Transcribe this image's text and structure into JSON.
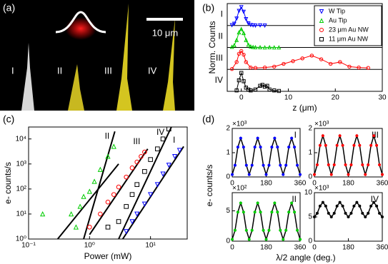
{
  "panel_labels": [
    "(a)",
    "(b)",
    "(c)",
    "(d)"
  ],
  "micrograph": {
    "tip_labels": [
      "I",
      "II",
      "III",
      "IV"
    ],
    "scale_bar": "10 μm"
  },
  "panel_d": {
    "x_label": "λ/2 angle (deg.)",
    "y_label": "e- counts/s"
  },
  "chart_data": [
    {
      "type": "stacked_line",
      "x_label": "z (μm)",
      "y_label": "Norm. Counts",
      "xlim": [
        -3,
        30
      ],
      "xticks": [
        0,
        10,
        20,
        30
      ],
      "legend": "upper right",
      "series": [
        {
          "name": "W Tip",
          "row_label": "I",
          "color": "#0000ff",
          "marker": "triangle-down",
          "x": [
            -2,
            -1.5,
            -1,
            -0.5,
            0,
            0.5,
            1,
            1.5,
            2,
            2.5,
            3,
            4,
            5
          ],
          "values": [
            0.02,
            0.1,
            0.38,
            0.8,
            1,
            0.75,
            0.35,
            0.12,
            0.03,
            0.01,
            0,
            0.01,
            0
          ]
        },
        {
          "name": "Au Tip",
          "row_label": "II",
          "color": "#00cc00",
          "marker": "triangle-up",
          "x": [
            -2,
            -1.5,
            -1,
            -0.5,
            0,
            0.5,
            1,
            1.5,
            2,
            2.5,
            3,
            4,
            5,
            6,
            7,
            8
          ],
          "values": [
            0.03,
            0.12,
            0.4,
            0.82,
            1,
            0.78,
            0.4,
            0.15,
            0.05,
            0.02,
            0.01,
            0.01,
            0,
            0.01,
            0,
            0
          ]
        },
        {
          "name": "23 μm Au NW",
          "row_label": "III",
          "color": "#ff0000",
          "marker": "circle",
          "x": [
            -2,
            -1,
            -0.5,
            0,
            0.5,
            1,
            2,
            3,
            5,
            7,
            9,
            11,
            13,
            15,
            17,
            19,
            21,
            23,
            25,
            27
          ],
          "values": [
            0.02,
            0.4,
            0.85,
            1,
            0.8,
            0.4,
            0.1,
            0.08,
            0.1,
            0.15,
            0.3,
            0.45,
            0.6,
            0.75,
            0.55,
            0.3,
            0.4,
            0.15,
            0.1,
            0.08
          ]
        },
        {
          "name": "11 μm Au NW",
          "row_label": "IV",
          "color": "#000000",
          "marker": "square",
          "x": [
            -1,
            -0.5,
            0,
            0.5,
            1,
            1.5,
            2,
            3,
            4,
            4.5,
            5,
            5.5,
            6,
            7,
            8
          ],
          "values": [
            0.05,
            0.6,
            1,
            0.55,
            0.2,
            0.1,
            0.05,
            0.1,
            0.3,
            0.35,
            0.25,
            0.3,
            0.1,
            0.05,
            0.02
          ]
        }
      ]
    },
    {
      "type": "scatter",
      "x_label": "Power (mW)",
      "y_label": "e- counts/s",
      "log_x": true,
      "log_y": true,
      "xlim": [
        0.1,
        40
      ],
      "ylim": [
        1,
        30000
      ],
      "xticks": [
        {
          "value": 0.1,
          "label": "10⁻¹"
        },
        {
          "value": 1,
          "label": "10⁰"
        },
        {
          "value": 10,
          "label": "10¹"
        }
      ],
      "yticks": [
        {
          "value": 1,
          "label": "10⁰"
        },
        {
          "value": 10,
          "label": "10¹"
        },
        {
          "value": 100,
          "label": "10²"
        },
        {
          "value": 1000,
          "label": "10³"
        },
        {
          "value": 10000,
          "label": "10⁴"
        }
      ],
      "series": [
        {
          "label": "II",
          "color": "#00cc00",
          "marker": "triangle-up",
          "x": [
            0.17,
            0.5,
            0.6,
            0.7,
            0.8,
            1,
            1.2,
            1.5,
            2,
            2.5
          ],
          "values": [
            10,
            10,
            3,
            20,
            50,
            80,
            200,
            600,
            2000,
            5000
          ]
        },
        {
          "label": "III",
          "color": "#ff0000",
          "marker": "circle",
          "x": [
            1,
            1.5,
            2,
            2.5,
            3,
            4,
            5,
            6,
            7,
            8
          ],
          "values": [
            3,
            10,
            30,
            60,
            120,
            300,
            700,
            1200,
            2000,
            3000
          ]
        },
        {
          "label": "IV",
          "color": "#000000",
          "marker": "square",
          "x": [
            2,
            3,
            4,
            5,
            6,
            8,
            10,
            13,
            16,
            20
          ],
          "values": [
            3,
            5,
            20,
            60,
            150,
            500,
            1500,
            4000,
            10000,
            25000
          ]
        },
        {
          "label": "I",
          "color": "#0000ff",
          "marker": "triangle-down",
          "x": [
            4,
            5,
            6,
            8,
            10,
            13,
            16,
            20,
            25,
            30
          ],
          "values": [
            2,
            5,
            10,
            25,
            60,
            150,
            400,
            900,
            2000,
            3500
          ]
        }
      ],
      "fits": [
        {
          "x": [
            0.8,
            2.6
          ],
          "values": [
            1,
            20000
          ]
        },
        {
          "x": [
            0.3,
            3
          ],
          "values": [
            1,
            1000
          ]
        },
        {
          "x": [
            1,
            9
          ],
          "values": [
            1.5,
            4000
          ]
        },
        {
          "x": [
            3,
            22
          ],
          "values": [
            1,
            30000
          ]
        },
        {
          "x": [
            3.5,
            35
          ],
          "values": [
            1,
            5000
          ]
        }
      ]
    },
    {
      "type": "line",
      "subplot_label": "I",
      "multiplier": "×10³",
      "xlim": [
        0,
        360
      ],
      "xticks": [
        0,
        180,
        360
      ],
      "ylim": [
        0,
        2
      ],
      "yticks": [
        0,
        1,
        2
      ],
      "x": [
        0,
        15,
        30,
        45,
        60,
        75,
        90,
        105,
        120,
        135,
        150,
        165,
        180,
        195,
        210,
        225,
        240,
        255,
        270,
        285,
        300,
        315,
        330,
        345,
        360
      ],
      "series": [
        {
          "color": "#0000ff",
          "values": [
            0.1,
            0.48,
            1.23,
            1.6,
            1.23,
            0.48,
            0.1,
            0.48,
            1.23,
            1.6,
            1.23,
            0.48,
            0.1,
            0.48,
            1.23,
            1.6,
            1.23,
            0.48,
            0.1,
            0.48,
            1.23,
            1.6,
            1.23,
            0.48,
            0.1
          ]
        }
      ]
    },
    {
      "type": "line",
      "subplot_label": "III",
      "multiplier": "×10³",
      "xlim": [
        0,
        360
      ],
      "xticks": [
        0,
        180,
        360
      ],
      "ylim": [
        0,
        2
      ],
      "yticks": [
        0,
        1,
        2
      ],
      "x": [
        0,
        15,
        30,
        45,
        60,
        75,
        90,
        105,
        120,
        135,
        150,
        165,
        180,
        195,
        210,
        225,
        240,
        255,
        270,
        285,
        300,
        315,
        330,
        345,
        360
      ],
      "series": [
        {
          "color": "#ff0000",
          "values": [
            0.1,
            0.5,
            1.3,
            1.7,
            1.3,
            0.5,
            0.1,
            0.5,
            1.3,
            1.7,
            1.3,
            0.5,
            0.1,
            0.5,
            1.3,
            1.7,
            1.3,
            0.5,
            0.1,
            0.5,
            1.3,
            1.7,
            1.3,
            0.5,
            0.1
          ]
        }
      ]
    },
    {
      "type": "line",
      "subplot_label": "II",
      "multiplier": "×10²",
      "xlim": [
        0,
        360
      ],
      "xticks": [
        0,
        180,
        360
      ],
      "ylim": [
        0,
        8
      ],
      "yticks": [
        0,
        5
      ],
      "x": [
        0,
        15,
        30,
        45,
        60,
        75,
        90,
        105,
        120,
        135,
        150,
        165,
        180,
        195,
        210,
        225,
        240,
        255,
        270,
        285,
        300,
        315,
        330,
        345,
        360
      ],
      "series": [
        {
          "color": "#00cc00",
          "values": [
            0.3,
            1.8,
            4.8,
            6.3,
            4.8,
            1.8,
            0.3,
            1.8,
            4.8,
            6.3,
            4.8,
            1.8,
            0.3,
            1.8,
            4.8,
            6.3,
            4.8,
            1.8,
            0.3,
            1.8,
            4.8,
            6.3,
            4.8,
            1.8,
            0.3
          ]
        }
      ]
    },
    {
      "type": "line",
      "subplot_label": "IV",
      "multiplier": "×10³",
      "xlim": [
        0,
        360
      ],
      "xticks": [
        0,
        180,
        360
      ],
      "ylim": [
        0,
        10
      ],
      "yticks": [
        0,
        5,
        10
      ],
      "x": [
        0,
        15,
        30,
        45,
        60,
        75,
        90,
        105,
        120,
        135,
        150,
        165,
        180,
        195,
        210,
        225,
        240,
        255,
        270,
        285,
        300,
        315,
        330,
        345,
        360
      ],
      "series": [
        {
          "color": "#000000",
          "values": [
            5,
            5.75,
            7.25,
            8,
            7.25,
            5.75,
            5,
            5.75,
            7.25,
            8,
            7.25,
            5.75,
            5,
            5.75,
            7.25,
            8,
            7.25,
            5.75,
            5,
            5.75,
            7.25,
            8,
            7.25,
            5.75,
            5
          ]
        }
      ]
    }
  ]
}
